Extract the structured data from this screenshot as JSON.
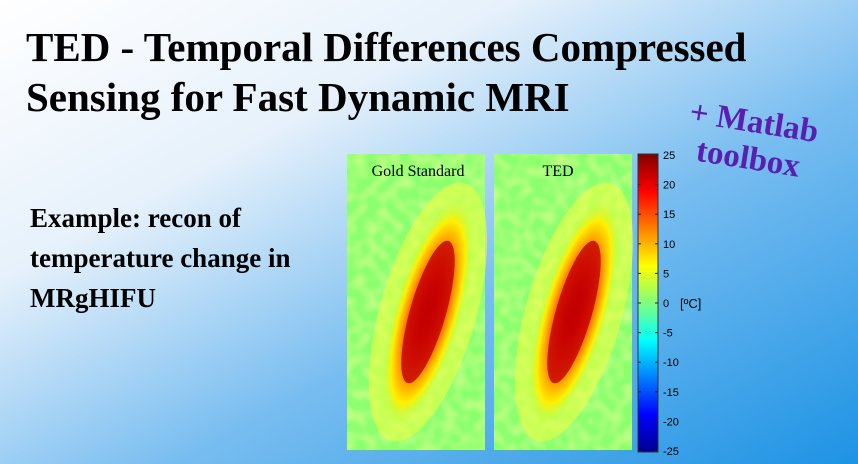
{
  "title": "TED - Temporal Differences Compressed Sensing for Fast Dynamic MRI",
  "tagline": "+ Matlab toolbox",
  "example_text": "Example: recon of temperature change in MRgHIFU",
  "figure": {
    "panels": [
      {
        "label": "Gold Standard"
      },
      {
        "label": "TED"
      }
    ],
    "colorbar": {
      "ticks": [
        "25",
        "20",
        "15",
        "10",
        "5",
        "0",
        "-5",
        "-10",
        "-15",
        "-20",
        "-25"
      ],
      "unit": "[ºC]",
      "colormap": "jet"
    }
  },
  "colors": {
    "title_text": "#000000",
    "tagline_text": "#5a1fb0",
    "background_light": "#ffffff",
    "background_blue": "#2196e6"
  }
}
